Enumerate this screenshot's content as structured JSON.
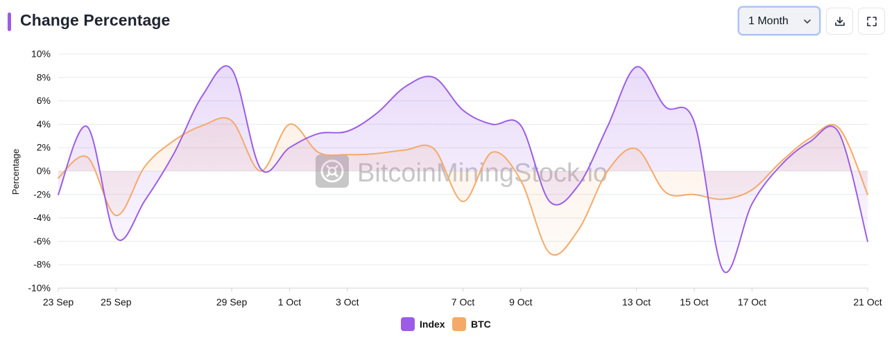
{
  "header": {
    "title": "Change Percentage",
    "range_selected": "1 Month",
    "accent_color": "#9b5de5"
  },
  "toolbar": {
    "download_icon": "download-icon",
    "fullscreen_icon": "fullscreen-icon"
  },
  "watermark": "BitcoinMiningStock.io",
  "chart_data": {
    "type": "area",
    "title": "Change Percentage",
    "ylabel": "Percentage",
    "xlabel": "",
    "ylim": [
      -10,
      10
    ],
    "y_ticks": [
      10,
      8,
      6,
      4,
      2,
      0,
      -2,
      -4,
      -6,
      -8,
      -10
    ],
    "y_tick_format": "percent",
    "grid": true,
    "legend_position": "bottom-center",
    "x_ticks": [
      {
        "day": 0,
        "label": "23 Sep"
      },
      {
        "day": 2,
        "label": "25 Sep"
      },
      {
        "day": 6,
        "label": "29 Sep"
      },
      {
        "day": 8,
        "label": "1 Oct"
      },
      {
        "day": 10,
        "label": "3 Oct"
      },
      {
        "day": 14,
        "label": "7 Oct"
      },
      {
        "day": 16,
        "label": "9 Oct"
      },
      {
        "day": 20,
        "label": "13 Oct"
      },
      {
        "day": 22,
        "label": "15 Oct"
      },
      {
        "day": 24,
        "label": "17 Oct"
      },
      {
        "day": 28,
        "label": "21 Oct"
      }
    ],
    "series": [
      {
        "name": "Index",
        "color": "#9b5de5",
        "points": [
          [
            0,
            -2.0
          ],
          [
            1,
            3.8
          ],
          [
            2,
            -5.7
          ],
          [
            3,
            -2.5
          ],
          [
            4,
            1.5
          ],
          [
            5,
            6.5
          ],
          [
            6,
            8.7
          ],
          [
            7,
            0.2
          ],
          [
            8,
            2.0
          ],
          [
            9,
            3.2
          ],
          [
            10,
            3.4
          ],
          [
            11,
            4.9
          ],
          [
            12,
            7.2
          ],
          [
            13,
            8.0
          ],
          [
            14,
            5.2
          ],
          [
            15,
            4.0
          ],
          [
            16,
            3.9
          ],
          [
            17,
            -2.6
          ],
          [
            18,
            -1.2
          ],
          [
            19,
            3.8
          ],
          [
            20,
            8.9
          ],
          [
            21,
            5.5
          ],
          [
            22,
            4.2
          ],
          [
            23,
            -8.5
          ],
          [
            24,
            -2.8
          ],
          [
            25,
            0.5
          ],
          [
            26,
            2.5
          ],
          [
            27,
            3.3
          ],
          [
            28,
            -6.0
          ]
        ]
      },
      {
        "name": "BTC",
        "color": "#f5a968",
        "points": [
          [
            0,
            -0.6
          ],
          [
            1,
            1.2
          ],
          [
            2,
            -3.8
          ],
          [
            3,
            0.4
          ],
          [
            4,
            2.6
          ],
          [
            5,
            3.9
          ],
          [
            6,
            4.3
          ],
          [
            7,
            0.0
          ],
          [
            8,
            4.0
          ],
          [
            9,
            1.6
          ],
          [
            10,
            1.4
          ],
          [
            11,
            1.5
          ],
          [
            12,
            1.8
          ],
          [
            13,
            1.9
          ],
          [
            14,
            -2.6
          ],
          [
            15,
            1.6
          ],
          [
            16,
            -0.8
          ],
          [
            17,
            -7.0
          ],
          [
            18,
            -5.0
          ],
          [
            19,
            0.0
          ],
          [
            20,
            1.9
          ],
          [
            21,
            -1.8
          ],
          [
            22,
            -2.0
          ],
          [
            23,
            -2.4
          ],
          [
            24,
            -1.6
          ],
          [
            25,
            0.8
          ],
          [
            26,
            2.8
          ],
          [
            27,
            3.7
          ],
          [
            28,
            -2.0
          ]
        ]
      }
    ]
  }
}
